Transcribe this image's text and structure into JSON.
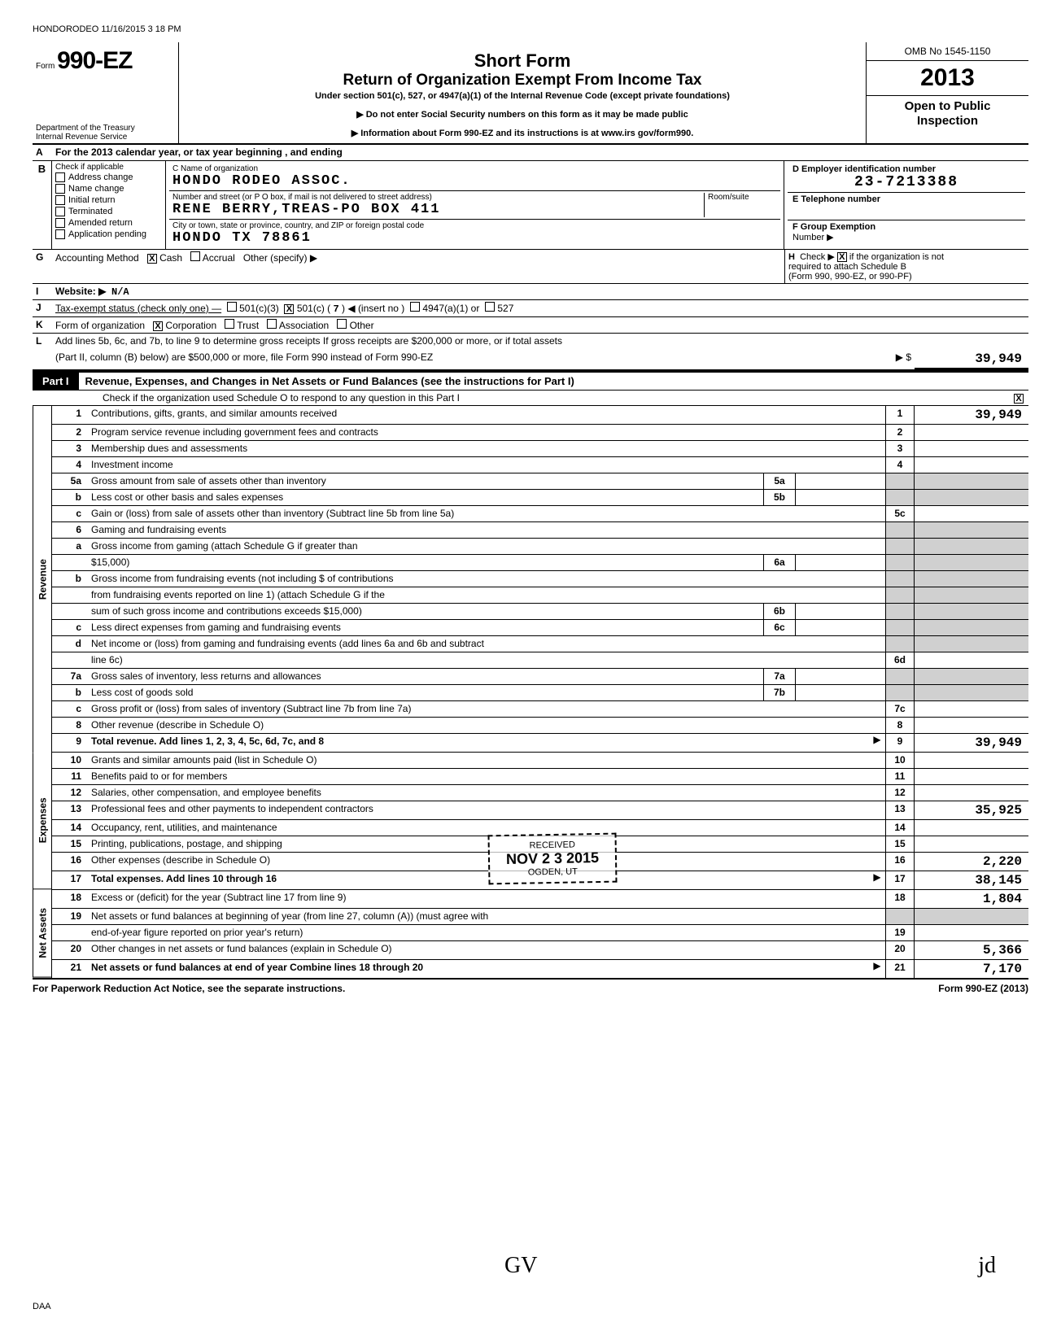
{
  "stamp_top": "HONDORODEO 11/16/2015 3 18 PM",
  "form": {
    "prefix": "Form",
    "number": "990-EZ",
    "dept1": "Department of the Treasury",
    "dept2": "Internal Revenue Service"
  },
  "title": {
    "main": "Short Form",
    "sub": "Return of Organization Exempt From Income Tax",
    "under": "Under section 501(c), 527, or 4947(a)(1) of the Internal Revenue Code (except private foundations)",
    "arrow1": "▶ Do not enter Social Security numbers on this form as it may be made public",
    "arrow2": "▶ Information about Form 990-EZ and its instructions is at www.irs gov/form990."
  },
  "rightbox": {
    "omb": "OMB No 1545-1150",
    "year": "2013",
    "open1": "Open to Public",
    "open2": "Inspection"
  },
  "lineA": "For the 2013 calendar year, or tax year beginning                    , and ending",
  "checkB": {
    "label": "Check if applicable",
    "items": [
      "Address change",
      "Name change",
      "Initial return",
      "Terminated",
      "Amended return",
      "Application pending"
    ]
  },
  "org": {
    "name_label": "C  Name of organization",
    "name": "HONDO RODEO ASSOC.",
    "street_label": "Number and street (or P O  box, if mail is not delivered to street address)",
    "room_label": "Room/suite",
    "street": "RENE BERRY,TREAS-PO BOX 411",
    "city_label": "City or town, state or province, country, and ZIP or foreign postal code",
    "city": "HONDO                    TX  78861"
  },
  "right_info": {
    "d_label": "D  Employer identification number",
    "ein": "23-7213388",
    "e_label": "E  Telephone number",
    "f_label": "F  Group Exemption",
    "f_label2": "Number  ▶"
  },
  "lineG": {
    "label": "Accounting Method",
    "cash": "Cash",
    "accrual": "Accrual",
    "other": "Other (specify) ▶"
  },
  "lineH": {
    "text1": "Check ▶",
    "text2": "if the organization is not",
    "text3": "required to attach Schedule B",
    "text4": "(Form 990, 990-EZ, or 990-PF)"
  },
  "lineI": {
    "label": "Website: ▶",
    "val": "N/A"
  },
  "lineJ": {
    "label": "Tax-exempt status (check only one) —",
    "opt1": "501(c)(3)",
    "opt2": "501(c) (",
    "num": "7",
    "opt2b": ") ◀ (insert no )",
    "opt3": "4947(a)(1) or",
    "opt4": "527"
  },
  "lineK": {
    "label": "Form of organization",
    "opts": [
      "Corporation",
      "Trust",
      "Association",
      "Other"
    ]
  },
  "lineL": {
    "text1": "Add lines 5b, 6c, and 7b, to line 9 to determine gross receipts  If gross receipts are $200,000 or more, or if total assets",
    "text2": "(Part II, column (B) below) are $500,000 or more, file Form 990 instead of Form 990-EZ",
    "arrow": "▶  $",
    "val": "39,949"
  },
  "part1": {
    "label": "Part I",
    "title": "Revenue, Expenses, and Changes in Net Assets or Fund Balances (see the instructions for Part I)",
    "checkO": "Check if the organization used Schedule O to respond to any question in this Part I"
  },
  "rows": [
    {
      "n": "1",
      "d": "Contributions, gifts, grants, and similar amounts received",
      "ln": "1",
      "v": "39,949"
    },
    {
      "n": "2",
      "d": "Program service revenue including government fees and contracts",
      "ln": "2",
      "v": ""
    },
    {
      "n": "3",
      "d": "Membership dues and assessments",
      "ln": "3",
      "v": ""
    },
    {
      "n": "4",
      "d": "Investment income",
      "ln": "4",
      "v": ""
    },
    {
      "n": "5a",
      "d": "Gross amount from sale of assets other than inventory",
      "mn": "5a",
      "mv": ""
    },
    {
      "n": "b",
      "d": "Less  cost or other basis and sales expenses",
      "mn": "5b",
      "mv": ""
    },
    {
      "n": "c",
      "d": "Gain or (loss) from sale of assets other than inventory (Subtract line 5b from line 5a)",
      "ln": "5c",
      "v": ""
    },
    {
      "n": "6",
      "d": "Gaming and fundraising events"
    },
    {
      "n": "a",
      "d": "Gross income from gaming (attach Schedule G if greater than"
    },
    {
      "n": "",
      "d": "$15,000)",
      "mn": "6a",
      "mv": ""
    },
    {
      "n": "b",
      "d": "Gross income from fundraising events (not including    $                          of contributions"
    },
    {
      "n": "",
      "d": "from fundraising events reported on line 1) (attach Schedule G if the"
    },
    {
      "n": "",
      "d": "sum of such gross income and contributions exceeds $15,000)",
      "mn": "6b",
      "mv": ""
    },
    {
      "n": "c",
      "d": "Less  direct expenses from gaming and fundraising events",
      "mn": "6c",
      "mv": ""
    },
    {
      "n": "d",
      "d": "Net income or (loss) from gaming and fundraising events (add lines 6a and 6b and subtract"
    },
    {
      "n": "",
      "d": "line 6c)",
      "ln": "6d",
      "v": ""
    },
    {
      "n": "7a",
      "d": "Gross sales of inventory, less returns and allowances",
      "mn": "7a",
      "mv": ""
    },
    {
      "n": "b",
      "d": "Less  cost of goods sold",
      "mn": "7b",
      "mv": ""
    },
    {
      "n": "c",
      "d": "Gross profit or (loss) from sales of inventory (Subtract line 7b from line 7a)",
      "ln": "7c",
      "v": ""
    },
    {
      "n": "8",
      "d": "Other revenue (describe in Schedule O)",
      "ln": "8",
      "v": ""
    },
    {
      "n": "9",
      "d": "Total revenue. Add lines 1, 2, 3, 4, 5c, 6d, 7c, and 8",
      "ln": "9",
      "v": "39,949",
      "bold": true,
      "arrow": true
    }
  ],
  "exp_rows": [
    {
      "n": "10",
      "d": "Grants and similar amounts paid (list in Schedule O)",
      "ln": "10",
      "v": ""
    },
    {
      "n": "11",
      "d": "Benefits paid to or for members",
      "ln": "11",
      "v": ""
    },
    {
      "n": "12",
      "d": "Salaries, other compensation, and employee benefits",
      "ln": "12",
      "v": ""
    },
    {
      "n": "13",
      "d": "Professional fees and other payments to independent contractors",
      "ln": "13",
      "v": "35,925"
    },
    {
      "n": "14",
      "d": "Occupancy, rent, utilities, and maintenance",
      "ln": "14",
      "v": ""
    },
    {
      "n": "15",
      "d": "Printing, publications, postage, and shipping",
      "ln": "15",
      "v": ""
    },
    {
      "n": "16",
      "d": "Other expenses (describe in Schedule O)",
      "ln": "16",
      "v": "2,220"
    },
    {
      "n": "17",
      "d": "Total expenses. Add lines 10 through 16",
      "ln": "17",
      "v": "38,145",
      "bold": true,
      "arrow": true
    }
  ],
  "na_rows": [
    {
      "n": "18",
      "d": "Excess or (deficit) for the year (Subtract line 17 from line 9)",
      "ln": "18",
      "v": "1,804"
    },
    {
      "n": "19",
      "d": "Net assets or fund balances at beginning of year (from line 27, column (A)) (must agree with"
    },
    {
      "n": "",
      "d": "end-of-year figure reported on prior year's return)",
      "ln": "19",
      "v": ""
    },
    {
      "n": "20",
      "d": "Other changes in net assets or fund balances (explain in Schedule O)",
      "ln": "20",
      "v": "5,366"
    },
    {
      "n": "21",
      "d": "Net assets or fund balances at end of year  Combine lines 18 through 20",
      "ln": "21",
      "v": "7,170",
      "bold": true,
      "arrow": true
    }
  ],
  "side_labels": {
    "rev": "Revenue",
    "exp": "Expenses",
    "na": "Net Assets"
  },
  "footer": {
    "left": "For Paperwork Reduction Act Notice, see the separate instructions.",
    "right": "Form 990-EZ (2013)"
  },
  "stamp": {
    "line1": "RECEIVED",
    "date": "NOV 2 3 2015",
    "line3": "OGDEN, UT"
  },
  "daa": "DAA",
  "initials": "GV",
  "sig": "jd"
}
